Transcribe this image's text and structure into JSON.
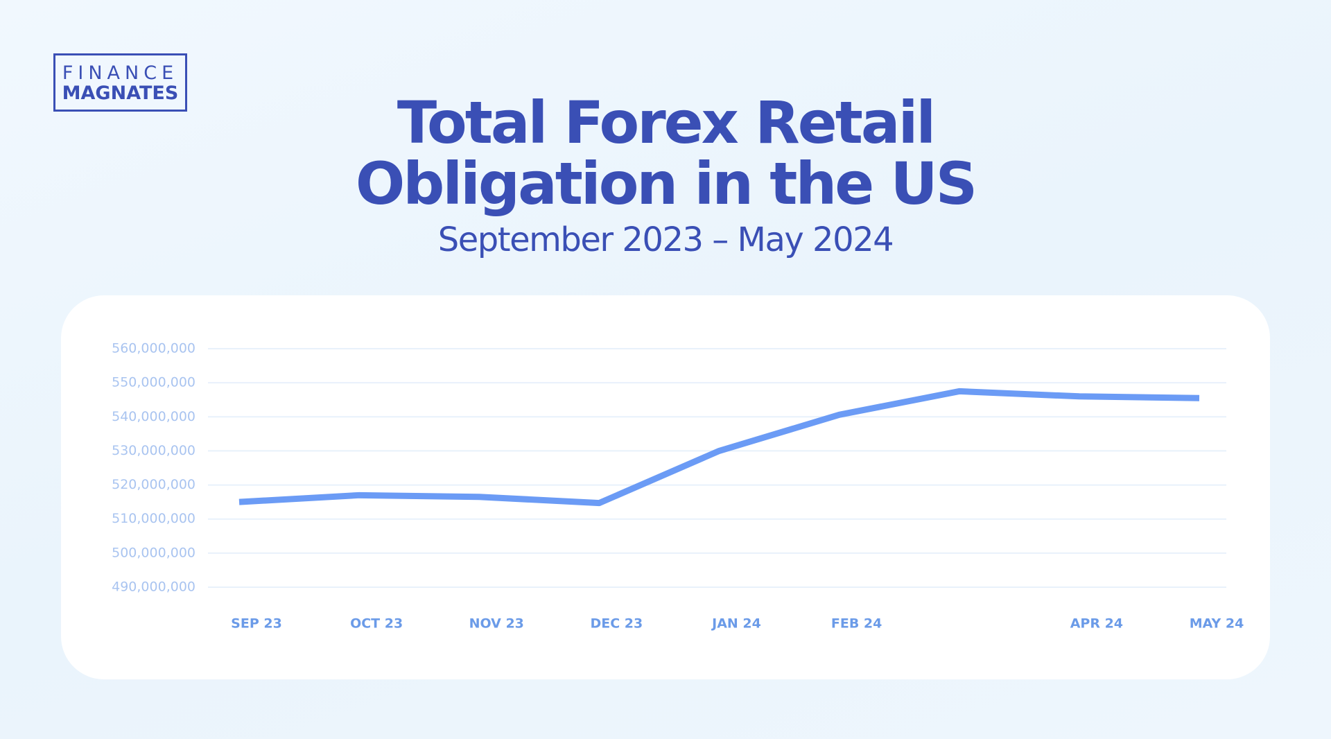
{
  "logo": {
    "line1": "FINANCE",
    "line2": "MAGNATES"
  },
  "chart_data": {
    "type": "line",
    "title": [
      "Total Forex Retail",
      "Obligation in the US"
    ],
    "subtitle": "September 2023 – May 2024",
    "categories": [
      "SEP 23",
      "OCT 23",
      "NOV 23",
      "DEC 23",
      "JAN 24",
      "FEB 24",
      null,
      "APR 24",
      "MAY 24"
    ],
    "series": [
      {
        "name": "Total Forex Retail Obligation",
        "color": "#6b9bf5",
        "values": [
          515000000,
          517000000,
          516500000,
          514700000,
          530000000,
          540600000,
          547500000,
          546000000,
          545500000
        ]
      }
    ],
    "ylim": [
      490000000,
      560000000
    ],
    "yticks": [
      {
        "value": 490000000,
        "label": "490,000,000"
      },
      {
        "value": 500000000,
        "label": "500,000,000"
      },
      {
        "value": 510000000,
        "label": "510,000,000"
      },
      {
        "value": 520000000,
        "label": "520,000,000"
      },
      {
        "value": 530000000,
        "label": "530,000,000"
      },
      {
        "value": 540000000,
        "label": "540,000,000"
      },
      {
        "value": 550000000,
        "label": "550,000,000"
      },
      {
        "value": 560000000,
        "label": "560,000,000"
      }
    ],
    "grid": true
  }
}
